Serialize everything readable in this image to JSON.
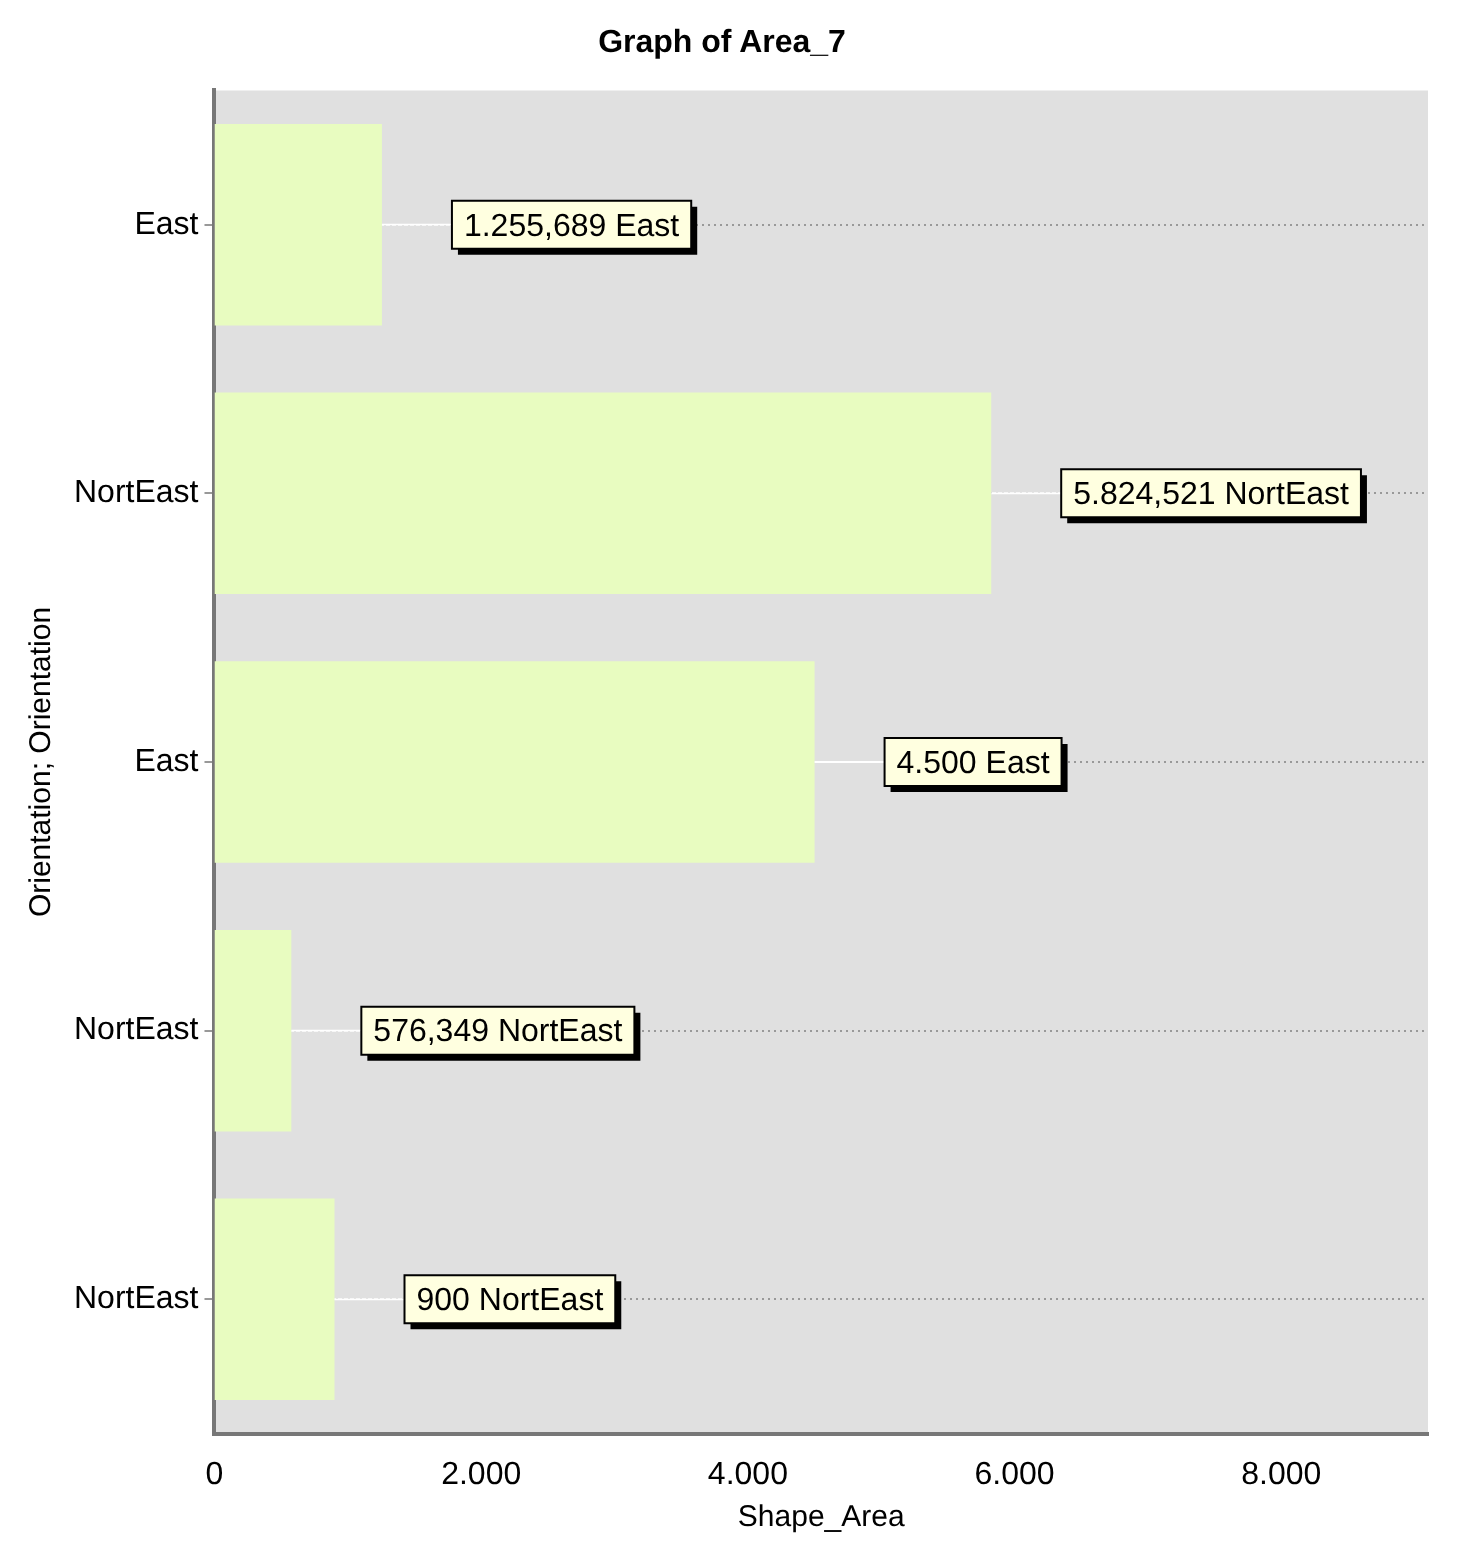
{
  "chart_data": {
    "type": "bar",
    "orientation": "horizontal",
    "title": "Graph of Area_7",
    "xlabel": "Shape_Area",
    "ylabel": "Orientation; Orientation",
    "categories": [
      "East",
      "NortEast",
      "East",
      "NortEast",
      "NortEast"
    ],
    "values": [
      1255.689,
      5824.521,
      4500,
      576.349,
      900
    ],
    "value_labels": [
      "1.255,689 East",
      "5.824,521 NortEast",
      "4.500 East",
      "576,349 NortEast",
      "900 NortEast"
    ],
    "color": "#e8fcc0",
    "xlim": [
      0,
      9100
    ],
    "xticks": [
      0,
      {
        "value": 2000,
        "label": "2.000"
      },
      {
        "value": 4000,
        "label": "4.000"
      },
      {
        "value": 6000,
        "label": "6.000"
      },
      {
        "value": 8000,
        "label": "8.000"
      }
    ],
    "grid": "y"
  }
}
